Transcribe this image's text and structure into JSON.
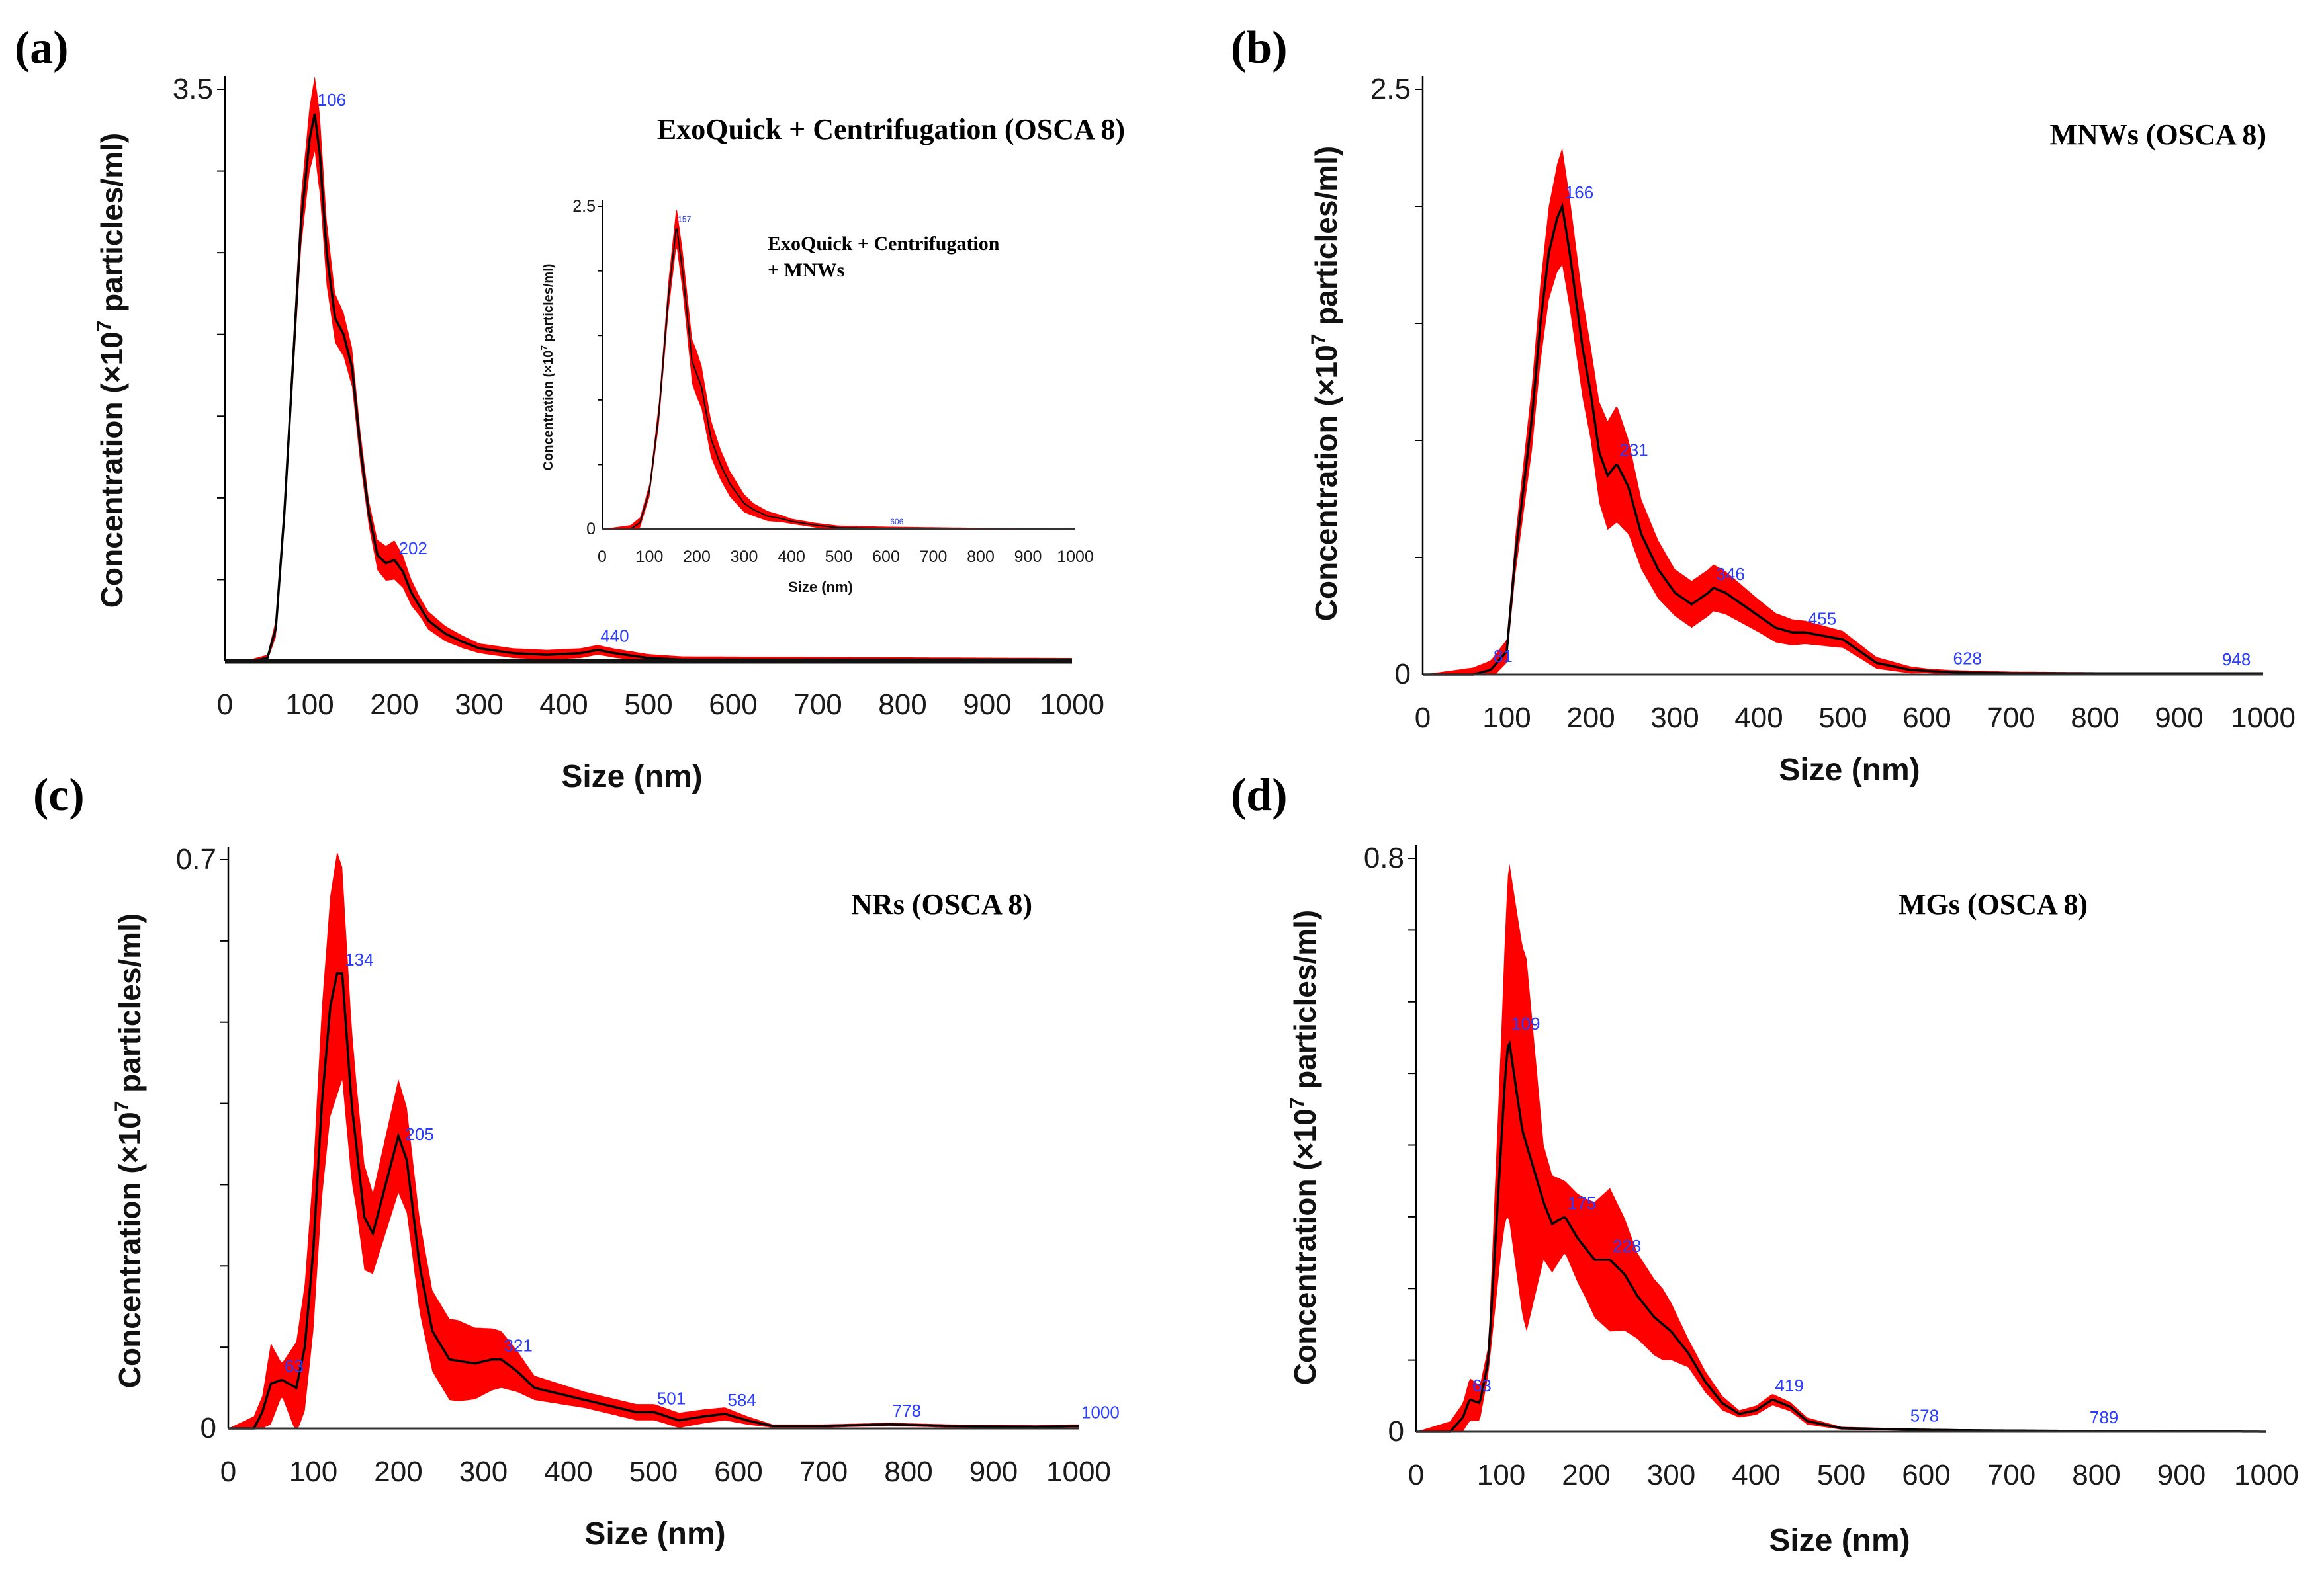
{
  "colors": {
    "band": "#ff0000",
    "mean_line": "#000000",
    "peak_label": "#2a3cff",
    "axis": "#000000"
  },
  "chart_data": [
    {
      "id": "a",
      "type": "area",
      "panel_label": "(a)",
      "title": "ExoQuick + Centrifugation (OSCA 8)",
      "xlabel": "Size (nm)",
      "ylabel_prefix": "Concentration (×10",
      "ylabel_exp": "7",
      "ylabel_suffix": " particles/ml)",
      "xlim": [
        0,
        1000
      ],
      "ylim": [
        0,
        3.5
      ],
      "x_ticks": [
        "0",
        "100",
        "200",
        "300",
        "400",
        "500",
        "600",
        "700",
        "800",
        "900",
        "1000"
      ],
      "y_tick_labels": [
        {
          "v": 3.5,
          "t": "3.5"
        }
      ],
      "peaks": [
        {
          "x": 106,
          "label": "106"
        },
        {
          "x": 202,
          "label": "202"
        },
        {
          "x": 440,
          "label": "440"
        }
      ],
      "mean": [
        [
          0,
          0
        ],
        [
          30,
          0
        ],
        [
          50,
          0.02
        ],
        [
          60,
          0.2
        ],
        [
          70,
          0.9
        ],
        [
          80,
          1.8
        ],
        [
          90,
          2.7
        ],
        [
          100,
          3.2
        ],
        [
          106,
          3.35
        ],
        [
          112,
          3.1
        ],
        [
          120,
          2.5
        ],
        [
          130,
          2.1
        ],
        [
          140,
          2.0
        ],
        [
          150,
          1.8
        ],
        [
          160,
          1.3
        ],
        [
          170,
          0.9
        ],
        [
          180,
          0.65
        ],
        [
          190,
          0.6
        ],
        [
          200,
          0.62
        ],
        [
          210,
          0.55
        ],
        [
          220,
          0.42
        ],
        [
          240,
          0.25
        ],
        [
          260,
          0.17
        ],
        [
          280,
          0.12
        ],
        [
          300,
          0.08
        ],
        [
          340,
          0.05
        ],
        [
          380,
          0.04
        ],
        [
          420,
          0.05
        ],
        [
          440,
          0.07
        ],
        [
          460,
          0.05
        ],
        [
          500,
          0.02
        ],
        [
          540,
          0.01
        ],
        [
          600,
          0.01
        ],
        [
          1000,
          0.01
        ]
      ],
      "spread": [
        [
          0,
          0
        ],
        [
          50,
          0.02
        ],
        [
          80,
          0.12
        ],
        [
          100,
          0.2
        ],
        [
          110,
          0.25
        ],
        [
          130,
          0.15
        ],
        [
          150,
          0.12
        ],
        [
          170,
          0.08
        ],
        [
          200,
          0.12
        ],
        [
          230,
          0.06
        ],
        [
          300,
          0.03
        ],
        [
          440,
          0.03
        ],
        [
          540,
          0.02
        ],
        [
          1000,
          0.01
        ]
      ],
      "inset": {
        "title_line1": "ExoQuick + Centrifugation",
        "title_line2": "+ MNWs",
        "xlabel": "Size (nm)",
        "ylabel_prefix": "Concentration (×10",
        "ylabel_exp": "7",
        "ylabel_suffix": " particles/ml)",
        "xlim": [
          0,
          1000
        ],
        "ylim": [
          0,
          2.5
        ],
        "x_ticks": [
          "0",
          "100",
          "200",
          "300",
          "400",
          "500",
          "600",
          "700",
          "800",
          "900",
          "1000"
        ],
        "y_tick_labels": [
          {
            "v": 2.5,
            "t": "2.5"
          },
          {
            "v": 0,
            "t": "0"
          }
        ],
        "peaks": [
          {
            "x": 157,
            "label": "157"
          },
          {
            "x": 606,
            "label": "606"
          }
        ],
        "mean": [
          [
            0,
            0
          ],
          [
            60,
            0
          ],
          [
            80,
            0.05
          ],
          [
            100,
            0.3
          ],
          [
            120,
            0.9
          ],
          [
            140,
            1.8
          ],
          [
            157,
            2.35
          ],
          [
            170,
            2.0
          ],
          [
            190,
            1.3
          ],
          [
            210,
            1.1
          ],
          [
            230,
            0.7
          ],
          [
            250,
            0.5
          ],
          [
            270,
            0.35
          ],
          [
            300,
            0.2
          ],
          [
            320,
            0.15
          ],
          [
            350,
            0.1
          ],
          [
            380,
            0.08
          ],
          [
            400,
            0.06
          ],
          [
            450,
            0.03
          ],
          [
            500,
            0.01
          ],
          [
            600,
            0.005
          ],
          [
            1000,
            0
          ]
        ],
        "spread": [
          [
            0,
            0
          ],
          [
            100,
            0.05
          ],
          [
            157,
            0.15
          ],
          [
            200,
            0.18
          ],
          [
            250,
            0.12
          ],
          [
            320,
            0.05
          ],
          [
            400,
            0.02
          ],
          [
            1000,
            0
          ]
        ]
      }
    },
    {
      "id": "b",
      "type": "area",
      "panel_label": "(b)",
      "title": "MNWs (OSCA 8)",
      "xlabel": "Size (nm)",
      "ylabel_prefix": "Concentration (×10",
      "ylabel_exp": "7",
      "ylabel_suffix": " particles/ml)",
      "xlim": [
        0,
        1000
      ],
      "ylim": [
        0,
        2.5
      ],
      "x_ticks": [
        "0",
        "100",
        "200",
        "300",
        "400",
        "500",
        "600",
        "700",
        "800",
        "900",
        "1000"
      ],
      "y_tick_labels": [
        {
          "v": 2.5,
          "t": "2.5"
        },
        {
          "v": 0,
          "t": "0"
        }
      ],
      "peaks": [
        {
          "x": 81,
          "label": "81"
        },
        {
          "x": 166,
          "label": "166"
        },
        {
          "x": 231,
          "label": "231"
        },
        {
          "x": 346,
          "label": "346"
        },
        {
          "x": 455,
          "label": "455"
        },
        {
          "x": 628,
          "label": "628"
        },
        {
          "x": 948,
          "label": "948"
        }
      ],
      "mean": [
        [
          0,
          0
        ],
        [
          60,
          0
        ],
        [
          81,
          0.02
        ],
        [
          100,
          0.1
        ],
        [
          110,
          0.5
        ],
        [
          120,
          0.8
        ],
        [
          130,
          1.1
        ],
        [
          140,
          1.5
        ],
        [
          150,
          1.8
        ],
        [
          160,
          1.95
        ],
        [
          166,
          2.0
        ],
        [
          175,
          1.8
        ],
        [
          190,
          1.4
        ],
        [
          200,
          1.2
        ],
        [
          210,
          0.95
        ],
        [
          220,
          0.85
        ],
        [
          231,
          0.9
        ],
        [
          245,
          0.8
        ],
        [
          260,
          0.6
        ],
        [
          280,
          0.45
        ],
        [
          300,
          0.35
        ],
        [
          320,
          0.3
        ],
        [
          340,
          0.35
        ],
        [
          346,
          0.37
        ],
        [
          360,
          0.35
        ],
        [
          380,
          0.3
        ],
        [
          400,
          0.25
        ],
        [
          420,
          0.2
        ],
        [
          440,
          0.18
        ],
        [
          455,
          0.18
        ],
        [
          470,
          0.17
        ],
        [
          500,
          0.15
        ],
        [
          520,
          0.1
        ],
        [
          540,
          0.05
        ],
        [
          580,
          0.02
        ],
        [
          628,
          0.01
        ],
        [
          700,
          0.005
        ],
        [
          948,
          0.005
        ],
        [
          1000,
          0.005
        ]
      ],
      "spread": [
        [
          0,
          0
        ],
        [
          100,
          0.05
        ],
        [
          150,
          0.2
        ],
        [
          166,
          0.25
        ],
        [
          200,
          0.2
        ],
        [
          231,
          0.25
        ],
        [
          260,
          0.15
        ],
        [
          300,
          0.1
        ],
        [
          346,
          0.1
        ],
        [
          400,
          0.07
        ],
        [
          455,
          0.05
        ],
        [
          520,
          0.03
        ],
        [
          600,
          0.01
        ],
        [
          1000,
          0
        ]
      ]
    },
    {
      "id": "c",
      "type": "area",
      "panel_label": "(c)",
      "title": "NRs (OSCA 8)",
      "xlabel": "Size (nm)",
      "ylabel_prefix": "Concentration (×10",
      "ylabel_exp": "7",
      "ylabel_suffix": " particles/ml)",
      "xlim": [
        0,
        1000
      ],
      "ylim": [
        0,
        0.7
      ],
      "x_ticks": [
        "0",
        "100",
        "200",
        "300",
        "400",
        "500",
        "600",
        "700",
        "800",
        "900",
        "1000"
      ],
      "y_tick_labels": [
        {
          "v": 0.7,
          "t": "0.7"
        },
        {
          "v": 0,
          "t": "0"
        }
      ],
      "peaks": [
        {
          "x": 63,
          "label": "63"
        },
        {
          "x": 134,
          "label": "134"
        },
        {
          "x": 205,
          "label": "205"
        },
        {
          "x": 321,
          "label": "321"
        },
        {
          "x": 501,
          "label": "501"
        },
        {
          "x": 584,
          "label": "584"
        },
        {
          "x": 778,
          "label": "778"
        },
        {
          "x": 1000,
          "label": "1000"
        }
      ],
      "mean": [
        [
          0,
          0
        ],
        [
          30,
          0
        ],
        [
          40,
          0.02
        ],
        [
          50,
          0.055
        ],
        [
          63,
          0.06
        ],
        [
          80,
          0.05
        ],
        [
          90,
          0.1
        ],
        [
          100,
          0.22
        ],
        [
          110,
          0.4
        ],
        [
          120,
          0.52
        ],
        [
          128,
          0.56
        ],
        [
          134,
          0.56
        ],
        [
          145,
          0.4
        ],
        [
          160,
          0.26
        ],
        [
          170,
          0.24
        ],
        [
          185,
          0.3
        ],
        [
          200,
          0.36
        ],
        [
          210,
          0.33
        ],
        [
          225,
          0.2
        ],
        [
          240,
          0.12
        ],
        [
          260,
          0.085
        ],
        [
          290,
          0.08
        ],
        [
          310,
          0.085
        ],
        [
          321,
          0.085
        ],
        [
          340,
          0.07
        ],
        [
          360,
          0.05
        ],
        [
          400,
          0.04
        ],
        [
          440,
          0.03
        ],
        [
          480,
          0.02
        ],
        [
          501,
          0.02
        ],
        [
          530,
          0.01
        ],
        [
          560,
          0.015
        ],
        [
          584,
          0.018
        ],
        [
          610,
          0.01
        ],
        [
          640,
          0.003
        ],
        [
          700,
          0.003
        ],
        [
          778,
          0.005
        ],
        [
          850,
          0.003
        ],
        [
          950,
          0.002
        ],
        [
          990,
          0.003
        ],
        [
          1000,
          0.003
        ]
      ],
      "spread": [
        [
          0,
          0
        ],
        [
          40,
          0.02
        ],
        [
          50,
          0.05
        ],
        [
          63,
          0.02
        ],
        [
          100,
          0.1
        ],
        [
          128,
          0.15
        ],
        [
          150,
          0.08
        ],
        [
          170,
          0.05
        ],
        [
          200,
          0.07
        ],
        [
          240,
          0.05
        ],
        [
          270,
          0.05
        ],
        [
          321,
          0.035
        ],
        [
          360,
          0.015
        ],
        [
          420,
          0.01
        ],
        [
          501,
          0.01
        ],
        [
          584,
          0.008
        ],
        [
          640,
          0.002
        ],
        [
          1000,
          0.002
        ]
      ]
    },
    {
      "id": "d",
      "type": "area",
      "panel_label": "(d)",
      "title": "MGs (OSCA 8)",
      "xlabel": "Size (nm)",
      "ylabel_prefix": "Concentration (×10",
      "ylabel_exp": "7",
      "ylabel_suffix": " particles/ml)",
      "xlim": [
        0,
        1000
      ],
      "ylim": [
        0,
        0.8
      ],
      "x_ticks": [
        "0",
        "100",
        "200",
        "300",
        "400",
        "500",
        "600",
        "700",
        "800",
        "900",
        "1000"
      ],
      "y_tick_labels": [
        {
          "v": 0.8,
          "t": "0.8"
        },
        {
          "v": 0,
          "t": "0"
        }
      ],
      "peaks": [
        {
          "x": 63,
          "label": "63"
        },
        {
          "x": 109,
          "label": "109"
        },
        {
          "x": 175,
          "label": "175"
        },
        {
          "x": 228,
          "label": "228"
        },
        {
          "x": 419,
          "label": "419"
        },
        {
          "x": 578,
          "label": "578"
        },
        {
          "x": 789,
          "label": "789"
        }
      ],
      "mean": [
        [
          0,
          0
        ],
        [
          40,
          0
        ],
        [
          55,
          0.02
        ],
        [
          63,
          0.045
        ],
        [
          75,
          0.04
        ],
        [
          85,
          0.1
        ],
        [
          95,
          0.3
        ],
        [
          105,
          0.5
        ],
        [
          109,
          0.55
        ],
        [
          115,
          0.5
        ],
        [
          125,
          0.42
        ],
        [
          135,
          0.38
        ],
        [
          150,
          0.32
        ],
        [
          160,
          0.29
        ],
        [
          175,
          0.3
        ],
        [
          190,
          0.27
        ],
        [
          210,
          0.24
        ],
        [
          228,
          0.24
        ],
        [
          245,
          0.22
        ],
        [
          260,
          0.19
        ],
        [
          280,
          0.16
        ],
        [
          300,
          0.14
        ],
        [
          320,
          0.11
        ],
        [
          340,
          0.07
        ],
        [
          360,
          0.04
        ],
        [
          380,
          0.025
        ],
        [
          400,
          0.03
        ],
        [
          419,
          0.045
        ],
        [
          440,
          0.035
        ],
        [
          460,
          0.015
        ],
        [
          500,
          0.005
        ],
        [
          578,
          0.003
        ],
        [
          650,
          0.002
        ],
        [
          789,
          0.001
        ],
        [
          1000,
          0
        ]
      ],
      "spread": [
        [
          0,
          0
        ],
        [
          55,
          0.02
        ],
        [
          63,
          0.03
        ],
        [
          85,
          0.02
        ],
        [
          100,
          0.15
        ],
        [
          109,
          0.25
        ],
        [
          130,
          0.26
        ],
        [
          150,
          0.08
        ],
        [
          175,
          0.05
        ],
        [
          200,
          0.07
        ],
        [
          228,
          0.1
        ],
        [
          260,
          0.06
        ],
        [
          290,
          0.05
        ],
        [
          320,
          0.02
        ],
        [
          380,
          0.005
        ],
        [
          419,
          0.008
        ],
        [
          500,
          0.002
        ],
        [
          1000,
          0
        ]
      ]
    }
  ]
}
